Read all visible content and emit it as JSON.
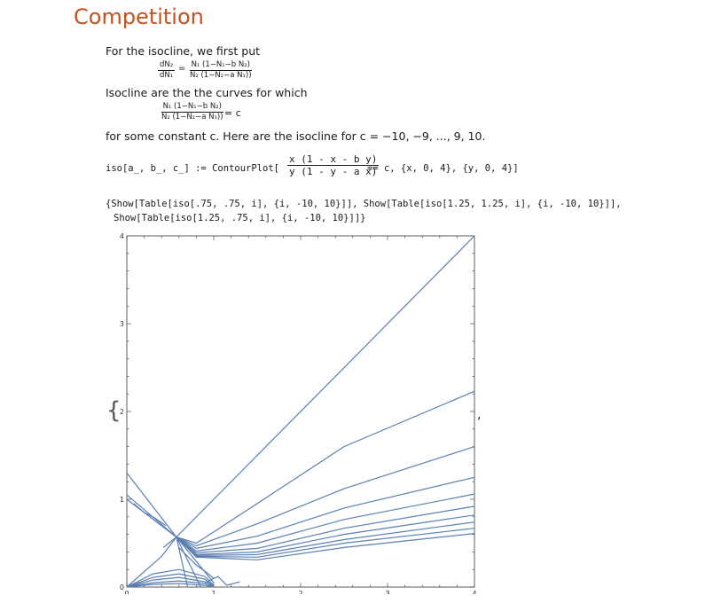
{
  "section": {
    "title": "Competition"
  },
  "para1": {
    "text": "For the isocline, we first put",
    "lhs_num": "dN₂",
    "lhs_den": "dN₁",
    "eq": "=",
    "rhs_num": "N₁ (1−N₁−b N₂)",
    "rhs_den": "N₂ (1−N₂−a N₁))"
  },
  "para2": {
    "text": "Isocline are the the curves for which",
    "num": "N₁ (1−N₁−b N₂)",
    "den": "N₂ (1−N₂−a N₁))",
    "rhs": "= c"
  },
  "para3": {
    "text": "for some constant c. Here are the isocline for c = −10, −9, ..., 9, 10."
  },
  "code1": {
    "prefix": "iso[a_, b_, c_] := ContourPlot[",
    "num": "x (1 - x - b y)",
    "den": "y (1 - y - a x)",
    "suffix": "== c, {x, 0, 4}, {y, 0, 4}]"
  },
  "code2": {
    "line1": "{Show[Table[iso[.75, .75, i], {i, -10, 10}]], Show[Table[iso[1.25, 1.25, i], {i, -10, 10}]],",
    "line2": "Show[Table[iso[1.25, .75, i], {i, -10, 10}]]}"
  },
  "output": {
    "open_brace": "{",
    "comma": ","
  },
  "chart_data": {
    "type": "line",
    "title": "",
    "xlabel": "",
    "ylabel": "",
    "xlim": [
      0,
      4
    ],
    "ylim": [
      0,
      4
    ],
    "x_ticks": [
      "0",
      "1",
      "2",
      "3",
      "4"
    ],
    "y_ticks": [
      "0",
      "1",
      "2",
      "3",
      "4"
    ],
    "line_color": "#5b7fb3",
    "series": [
      {
        "x": [
          0.57,
          4.0
        ],
        "y": [
          0.57,
          4.0
        ]
      },
      {
        "x": [
          0.57,
          0.8,
          1.5,
          2.5,
          4.0
        ],
        "y": [
          0.57,
          0.5,
          0.95,
          1.6,
          2.23
        ]
      },
      {
        "x": [
          0.57,
          0.8,
          1.5,
          2.5,
          4.0
        ],
        "y": [
          0.57,
          0.47,
          0.72,
          1.12,
          1.6
        ]
      },
      {
        "x": [
          0.57,
          0.8,
          1.5,
          2.5,
          4.0
        ],
        "y": [
          0.57,
          0.44,
          0.58,
          0.9,
          1.25
        ]
      },
      {
        "x": [
          0.57,
          0.8,
          1.5,
          2.5,
          4.0
        ],
        "y": [
          0.57,
          0.41,
          0.5,
          0.77,
          1.06
        ]
      },
      {
        "x": [
          0.57,
          0.8,
          1.5,
          2.5,
          4.0
        ],
        "y": [
          0.57,
          0.39,
          0.44,
          0.67,
          0.92
        ]
      },
      {
        "x": [
          0.57,
          0.8,
          1.5,
          2.5,
          4.0
        ],
        "y": [
          0.57,
          0.37,
          0.4,
          0.6,
          0.82
        ]
      },
      {
        "x": [
          0.57,
          0.8,
          1.5,
          2.5,
          4.0
        ],
        "y": [
          0.57,
          0.36,
          0.37,
          0.54,
          0.74
        ]
      },
      {
        "x": [
          0.57,
          0.8,
          1.5,
          2.5,
          4.0
        ],
        "y": [
          0.57,
          0.35,
          0.34,
          0.5,
          0.67
        ]
      },
      {
        "x": [
          0.57,
          0.8,
          1.5,
          2.5,
          4.0
        ],
        "y": [
          0.57,
          0.34,
          0.31,
          0.45,
          0.61
        ]
      },
      {
        "x": [
          0.0,
          0.57,
          1.0
        ],
        "y": [
          1.3,
          0.57,
          0.05
        ]
      },
      {
        "x": [
          0.0,
          0.57,
          0.85
        ],
        "y": [
          1.05,
          0.57,
          0.0
        ]
      },
      {
        "x": [
          0.0,
          0.57
        ],
        "y": [
          1.0,
          0.57
        ]
      },
      {
        "x": [
          0.42,
          0.57,
          0.7
        ],
        "y": [
          0.45,
          0.57,
          0.0
        ]
      },
      {
        "x": [
          0.0,
          0.4,
          0.57
        ],
        "y": [
          0.0,
          0.35,
          0.57
        ]
      },
      {
        "x": [
          0.0,
          0.3,
          0.6,
          0.9,
          1.0
        ],
        "y": [
          0.0,
          0.15,
          0.2,
          0.12,
          0.02
        ]
      },
      {
        "x": [
          0.0,
          0.3,
          0.6,
          0.9,
          1.0
        ],
        "y": [
          0.0,
          0.11,
          0.15,
          0.09,
          0.01
        ]
      },
      {
        "x": [
          0.0,
          0.3,
          0.6,
          0.9,
          1.0
        ],
        "y": [
          0.0,
          0.08,
          0.11,
          0.06,
          0.01
        ]
      },
      {
        "x": [
          0.0,
          0.3,
          0.6,
          0.9,
          1.0
        ],
        "y": [
          0.0,
          0.05,
          0.07,
          0.04,
          0.0
        ]
      },
      {
        "x": [
          0.0,
          0.3,
          0.6,
          0.9,
          1.0
        ],
        "y": [
          0.0,
          0.03,
          0.04,
          0.02,
          0.0
        ]
      },
      {
        "x": [
          0.08,
          0.2,
          0.3,
          0.45
        ],
        "y": [
          0.95,
          0.85,
          0.8,
          0.7
        ]
      },
      {
        "x": [
          0.6,
          0.7,
          0.8,
          0.9,
          1.0
        ],
        "y": [
          0.45,
          0.35,
          0.25,
          0.18,
          0.1
        ]
      },
      {
        "x": [
          0.9,
          1.05,
          1.15,
          1.3
        ],
        "y": [
          0.05,
          0.12,
          0.02,
          0.06
        ]
      }
    ]
  }
}
